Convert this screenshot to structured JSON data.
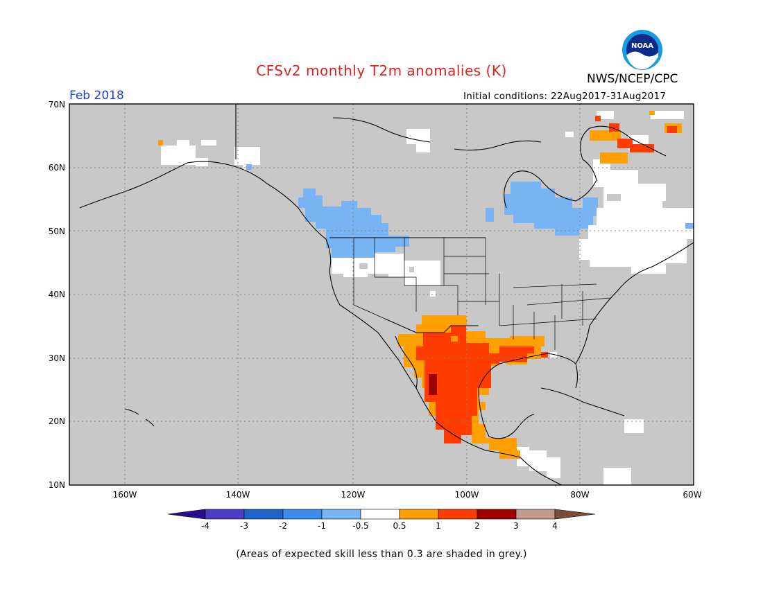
{
  "title": "CFSv2 monthly T2m anomalies (K)",
  "agency": "NWS/NCEP/CPC",
  "logo_text": "NOAA",
  "period": "Feb 2018",
  "initial_conditions": "Initial conditions: 22Aug2017-31Aug2017",
  "footnote": "(Areas of expected skill less than 0.3 are shaded in grey.)",
  "map": {
    "lat_labels": [
      "70N",
      "60N",
      "50N",
      "40N",
      "30N",
      "20N",
      "10N"
    ],
    "lon_labels": [
      "160W",
      "140W",
      "120W",
      "100W",
      "80W",
      "60W"
    ],
    "extent": {
      "lon": [
        -172,
        -60
      ],
      "lat": [
        10,
        70
      ]
    },
    "background_color": "#c8c8c8",
    "gridlines": "dotted"
  },
  "colorbar": {
    "labels": [
      "-4",
      "-3",
      "-2",
      "-1",
      "-0.5",
      "0.5",
      "1",
      "2",
      "3",
      "4"
    ],
    "colors": [
      "#2a0d8a",
      "#4a3ec8",
      "#1f64c8",
      "#3c8cec",
      "#78b4f4",
      "#ffffff",
      "#ffa000",
      "#ff3c00",
      "#a00000",
      "#c49a8c",
      "#7a4a3c"
    ]
  },
  "anomaly_regions": [
    {
      "name": "alaska-near-normal",
      "color": "#ffffff"
    },
    {
      "name": "pacific-northwest-cold",
      "color": "#78b4f4"
    },
    {
      "name": "great-basin-near-normal",
      "color": "#ffffff"
    },
    {
      "name": "quebec-cold",
      "color": "#78b4f4"
    },
    {
      "name": "eastern-canada-near-normal",
      "color": "#ffffff"
    },
    {
      "name": "southwest-warm",
      "color": "#ffa000"
    },
    {
      "name": "mexico-texas-warm",
      "color": "#ff3c00"
    },
    {
      "name": "gulf-coast-warm",
      "color": "#ffa000"
    },
    {
      "name": "central-america-warm",
      "color": "#ffa000"
    },
    {
      "name": "baffin-warm",
      "color": "#ff3c00"
    }
  ]
}
